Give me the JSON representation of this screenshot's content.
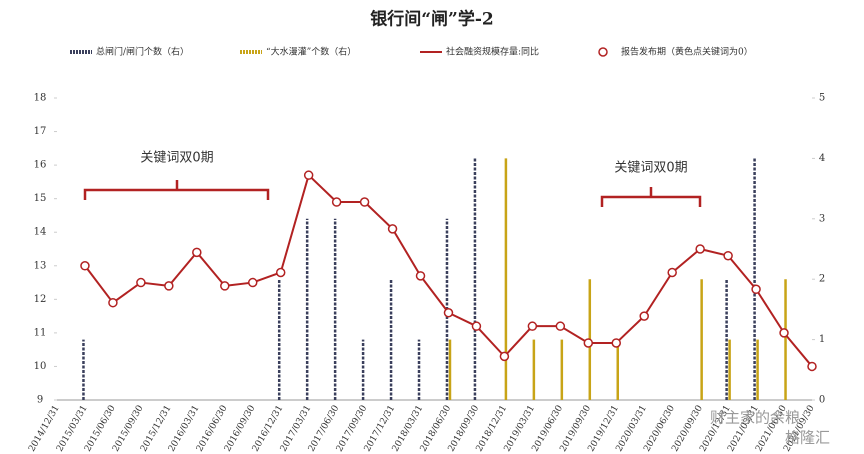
{
  "chart_data": {
    "type": "bar-line",
    "title": "银行间“闸”学-2",
    "categories": [
      "2014/12/31",
      "2015/03/31",
      "2015/06/30",
      "2015/09/30",
      "2015/12/31",
      "2016/03/31",
      "2016/06/30",
      "2016/09/30",
      "2016/12/31",
      "2017/03/31",
      "2017/06/30",
      "2017/09/30",
      "2017/12/31",
      "2018/03/31",
      "2018/06/30",
      "2018/09/30",
      "2018/12/31",
      "2019/03/31",
      "2019/06/30",
      "2019/09/30",
      "2019/12/31",
      "2020/03/31",
      "2020/06/30",
      "2020/09/30",
      "2020/12/31",
      "2021/03/31",
      "2021/06/30",
      "2021/09/30"
    ],
    "series": [
      {
        "name": "总闸门/闸门个数（右）",
        "kind": "bar",
        "axis": "y2",
        "color": "#3a3f5c",
        "values": [
          null,
          1,
          null,
          null,
          null,
          null,
          null,
          null,
          2,
          3,
          3,
          1,
          2,
          1,
          3,
          4,
          null,
          null,
          null,
          null,
          null,
          null,
          null,
          null,
          2,
          4,
          null,
          null
        ]
      },
      {
        "name": "“大水漫灌”个数（右）",
        "kind": "bar",
        "axis": "y2",
        "color": "#c8a417",
        "values": [
          null,
          null,
          null,
          null,
          null,
          null,
          null,
          null,
          null,
          null,
          null,
          null,
          null,
          null,
          1,
          null,
          4,
          1,
          1,
          2,
          1,
          null,
          null,
          2,
          1,
          1,
          2,
          null
        ]
      },
      {
        "name": "社会融资规模存量:同比",
        "kind": "line",
        "color": "#b22222",
        "values": [
          null,
          13.0,
          11.9,
          12.5,
          12.4,
          13.4,
          12.4,
          12.5,
          12.8,
          15.7,
          14.9,
          14.9,
          14.1,
          12.7,
          11.6,
          11.2,
          10.3,
          11.2,
          11.2,
          10.7,
          10.7,
          11.5,
          12.8,
          13.5,
          13.3,
          12.3,
          11.0,
          10.0
        ]
      },
      {
        "name": "报告发布期（黄色点关键词为0）",
        "kind": "scatter",
        "color": "#b22222",
        "values": [
          null,
          13.0,
          11.9,
          12.5,
          12.4,
          13.4,
          12.4,
          12.5,
          12.8,
          15.7,
          14.9,
          14.9,
          14.1,
          12.7,
          11.6,
          11.2,
          10.3,
          11.2,
          11.2,
          10.7,
          10.7,
          11.5,
          12.8,
          13.5,
          13.3,
          12.3,
          11.0,
          10.0
        ]
      }
    ],
    "ylim": [
      9,
      18
    ],
    "yticks": [
      9,
      10,
      11,
      12,
      13,
      14,
      15,
      16,
      17,
      18
    ],
    "y2lim": [
      0,
      5
    ],
    "y2ticks": [
      0,
      1,
      2,
      3,
      4,
      5
    ],
    "annotations": [
      "关键词双0期",
      "关键词双0期"
    ],
    "watermark": [
      "财主家的余粮",
      "格隆汇"
    ]
  }
}
